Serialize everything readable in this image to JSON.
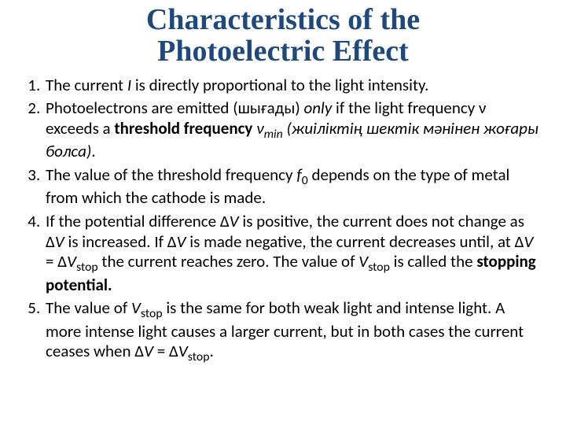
{
  "colors": {
    "title": "#1f497d",
    "body_text": "#000000",
    "background": "#ffffff"
  },
  "typography": {
    "title_font": "Times New Roman",
    "title_size_pt": 32,
    "title_weight": "bold",
    "body_font": "Calibri",
    "body_size_pt": 18,
    "line_height": 1.22
  },
  "title_line1": "Characteristics of the",
  "title_line2": "Photoelectric Effect",
  "items": {
    "i1": {
      "a": "The current ",
      "I": "I",
      "b": " is directly proportional to the light intensity."
    },
    "i2": {
      "a": "Photoelectrons are emitted (шығады) ",
      "only": "only",
      "b": " if the light frequency ν exceeds a ",
      "threshold": "threshold frequency",
      "sp": " ",
      "nu": "ν",
      "min": "min",
      "c": " (жиіліктің шектік мәнінен жоғары болса)",
      "d": "."
    },
    "i3": {
      "a": "The value of the threshold frequency ",
      "f": "f",
      "zero": "0",
      "b": " depends on the type of metal from which the cathode is made."
    },
    "i4": {
      "a": "If the potential difference Δ",
      "V": "V",
      "b": " is positive, the current does not change as Δ",
      "V2": "V",
      "c": " is increased. If Δ",
      "V3": "V",
      "d": " is made negative, the current decreases until, at Δ",
      "V4": "V",
      "e": "  = Δ",
      "V5": "V",
      "stop1": "stop",
      "f": " the current reaches zero. The value of ",
      "V6": "V",
      "stop2": "stop",
      "g": " is called the ",
      "stopping": "stopping potential.",
      "h": ""
    },
    "i5": {
      "a": "The value of ",
      "V": "V",
      "stop1": "stop",
      "b": " is the same for both weak light and intense light. A more intense light causes a larger current, but in both cases the current ceases when Δ",
      "V2": "V",
      "c": "  = Δ",
      "V3": "V",
      "stop2": "stop",
      "d": "."
    }
  }
}
